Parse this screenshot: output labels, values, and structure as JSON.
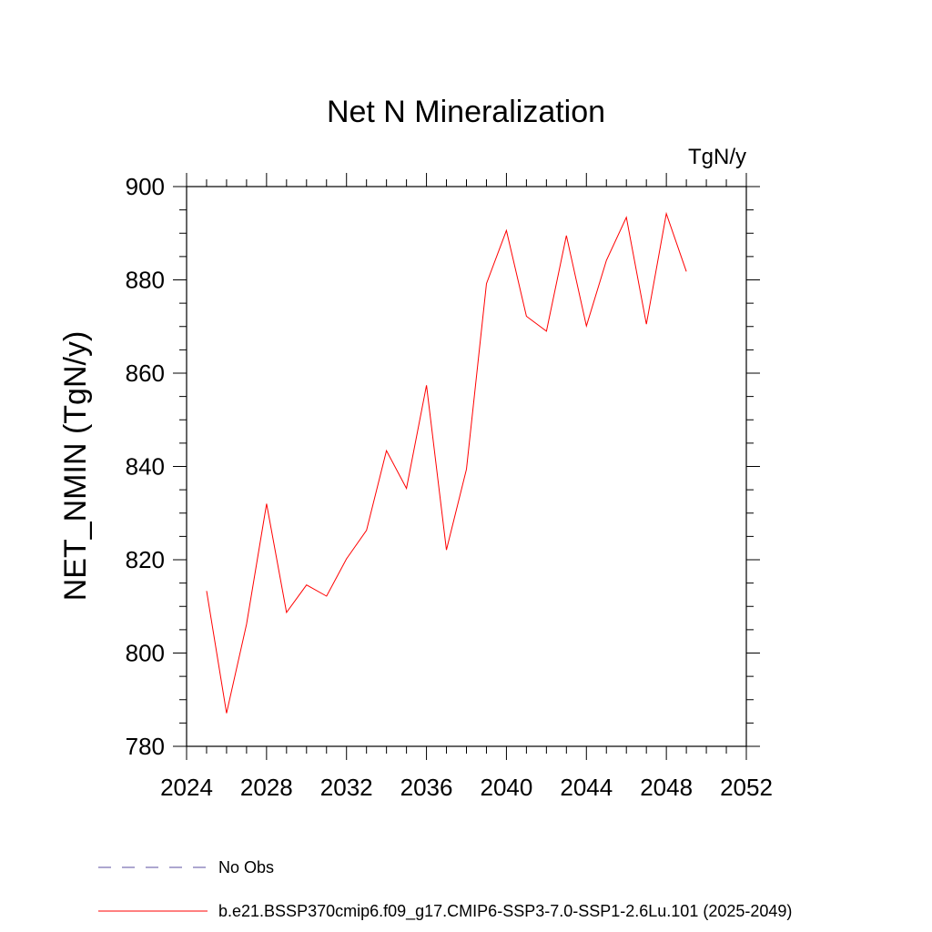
{
  "chart_data": {
    "type": "line",
    "title": "Net N Mineralization",
    "units": "TgN/y",
    "xlabel": "",
    "ylabel": "NET_NMIN  (TgN/y)",
    "xlim": [
      2024,
      2052
    ],
    "ylim": [
      780,
      900
    ],
    "xticks": [
      2024,
      2028,
      2032,
      2036,
      2040,
      2044,
      2048,
      2052
    ],
    "yticks": [
      780,
      800,
      820,
      840,
      860,
      880,
      900
    ],
    "series": [
      {
        "name": "b.e21.BSSP370cmip6.f09_g17.CMIP6-SSP3-7.0-SSP1-2.6Lu.101 (2025-2049)",
        "color": "#ff0000",
        "x": [
          2025,
          2026,
          2027,
          2028,
          2029,
          2030,
          2031,
          2032,
          2033,
          2034,
          2035,
          2036,
          2037,
          2038,
          2039,
          2040,
          2041,
          2042,
          2043,
          2044,
          2045,
          2046,
          2047,
          2048,
          2049
        ],
        "values": [
          813.3,
          787.1,
          806.2,
          832.0,
          808.7,
          814.6,
          812.2,
          820.2,
          826.3,
          843.4,
          835.3,
          857.4,
          822.1,
          839.4,
          879.2,
          890.6,
          872.2,
          869.0,
          889.5,
          870.1,
          884.2,
          893.4,
          870.5,
          894.2,
          881.8
        ]
      }
    ],
    "legend": {
      "placement": "bottom",
      "entries": [
        {
          "label": "No Obs",
          "style": "dashed",
          "color": "#5b4fa0"
        },
        {
          "label": "b.e21.BSSP370cmip6.f09_g17.CMIP6-SSP3-7.0-SSP1-2.6Lu.101 (2025-2049)",
          "style": "solid",
          "color": "#ff0000"
        }
      ]
    }
  }
}
